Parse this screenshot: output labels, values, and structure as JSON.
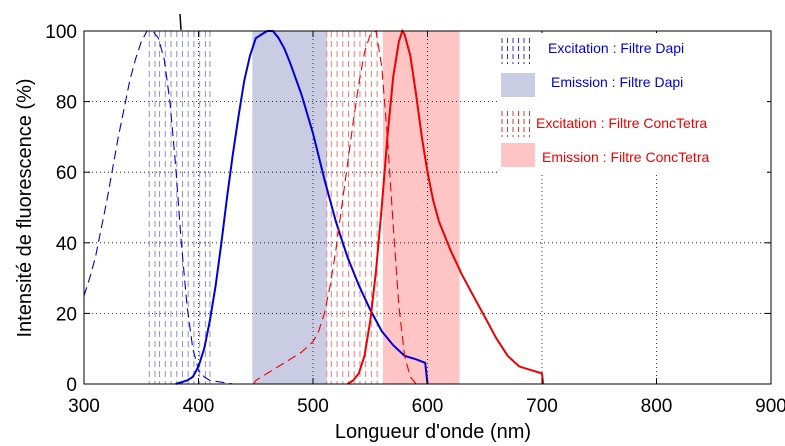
{
  "chart_data": {
    "type": "line",
    "title": "",
    "xlabel": "Longueur d'onde (nm)",
    "ylabel": "Intensité de fluorescence (%)",
    "xlim": [
      300,
      900
    ],
    "ylim": [
      0,
      100
    ],
    "x_ticks": [
      "300",
      "400",
      "500",
      "600",
      "700",
      "800",
      "900"
    ],
    "y_ticks": [
      "0",
      "20",
      "40",
      "60",
      "80",
      "100"
    ],
    "grid": true,
    "legend_position": "top-right",
    "colors": {
      "dapi": "#0000dd",
      "conc": "#ee0000",
      "dapi_band": "#c9cce3",
      "conc_band": "#ffc4c4"
    },
    "legend": [
      {
        "label": "Excitation : Filtre Dapi",
        "kind": "dashed-band",
        "color": "#0000dd"
      },
      {
        "label": "Emission : Filtre Dapi",
        "kind": "fill-band",
        "color": "#c9cce3"
      },
      {
        "label": "Excitation : Filtre ConcTetra",
        "kind": "dashed-band",
        "color": "#ee0000"
      },
      {
        "label": "Emission : Filtre ConcTetra",
        "kind": "fill-band",
        "color": "#ffc4c4"
      }
    ],
    "bands": [
      {
        "name": "Emission : Filtre Dapi",
        "x0": 447,
        "x1": 512,
        "color": "#c9cce3"
      },
      {
        "name": "Emission : Filtre ConcTetra",
        "x0": 561,
        "x1": 628,
        "color": "#ffc4c4"
      }
    ],
    "dashed_lines": [
      {
        "name": "Excitation : Filtre Dapi",
        "color": "#8c8cd8",
        "x": [
          357,
          362,
          366,
          371,
          376,
          381,
          386,
          391,
          396,
          401,
          406,
          410
        ]
      },
      {
        "name": "Excitation : Filtre ConcTetra",
        "color": "#f07a7a",
        "x": [
          512,
          516,
          521,
          526,
          531,
          536,
          541,
          546,
          551,
          556
        ]
      }
    ],
    "series": [
      {
        "name": "Excitation : Filtre Dapi",
        "style": "dashed",
        "color": "#0000dd",
        "x": [
          300,
          305,
          310,
          315,
          320,
          325,
          330,
          335,
          340,
          345,
          350,
          355,
          360,
          365,
          370,
          375,
          380,
          385,
          390,
          395,
          400,
          405,
          410,
          420,
          430
        ],
        "y": [
          25,
          30,
          36,
          44,
          52,
          61,
          70,
          78,
          86,
          92,
          97,
          100,
          100,
          98,
          92,
          80,
          62,
          40,
          22,
          10,
          4,
          2,
          1,
          0.5,
          0
        ]
      },
      {
        "name": "Emission : Filtre Dapi",
        "style": "solid",
        "color": "#0000dd",
        "x": [
          380,
          390,
          395,
          400,
          405,
          410,
          415,
          420,
          425,
          430,
          435,
          440,
          445,
          450,
          455,
          460,
          465,
          470,
          475,
          480,
          490,
          500,
          510,
          520,
          530,
          540,
          550,
          560,
          570,
          580,
          590,
          598,
          600
        ],
        "y": [
          0,
          1,
          2,
          5,
          10,
          18,
          28,
          40,
          53,
          65,
          76,
          86,
          93,
          98,
          99,
          100,
          100,
          98,
          95,
          91,
          82,
          71,
          58,
          46,
          36,
          28,
          21,
          15,
          11,
          8,
          7,
          6,
          0
        ]
      },
      {
        "name": "Excitation : Filtre ConcTetra",
        "style": "dashed",
        "color": "#ee0000",
        "x": [
          448,
          450,
          460,
          470,
          480,
          490,
          500,
          505,
          510,
          515,
          520,
          525,
          530,
          535,
          540,
          545,
          550,
          555,
          560,
          565,
          570,
          575,
          580,
          585,
          590
        ],
        "y": [
          0,
          1,
          3,
          5,
          7,
          9,
          12,
          15,
          20,
          28,
          38,
          50,
          62,
          74,
          85,
          94,
          99,
          100,
          90,
          70,
          45,
          22,
          8,
          2,
          0
        ]
      },
      {
        "name": "Emission : Filtre ConcTetra",
        "style": "solid",
        "color": "#ee0000",
        "x": [
          530,
          535,
          540,
          545,
          550,
          555,
          560,
          565,
          570,
          575,
          578,
          580,
          585,
          590,
          595,
          600,
          605,
          610,
          620,
          630,
          640,
          650,
          660,
          670,
          680,
          690,
          700,
          701
        ],
        "y": [
          0,
          1,
          3,
          8,
          18,
          32,
          50,
          70,
          87,
          97,
          100,
          99,
          93,
          82,
          70,
          60,
          52,
          46,
          38,
          31,
          25,
          19,
          13,
          8,
          5,
          4,
          3,
          0
        ]
      }
    ]
  }
}
